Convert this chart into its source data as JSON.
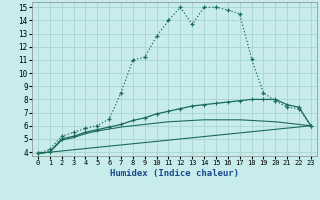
{
  "xlabel": "Humidex (Indice chaleur)",
  "bg_color": "#c8ecec",
  "grid_color": "#b0d8d8",
  "line_color": "#1a6b5a",
  "xlim": [
    -0.5,
    23.5
  ],
  "ylim": [
    3.7,
    15.4
  ],
  "xticks": [
    0,
    1,
    2,
    3,
    4,
    5,
    6,
    7,
    8,
    9,
    10,
    11,
    12,
    13,
    14,
    15,
    16,
    17,
    18,
    19,
    20,
    21,
    22,
    23
  ],
  "yticks": [
    4,
    5,
    6,
    7,
    8,
    9,
    10,
    11,
    12,
    13,
    14,
    15
  ],
  "series1_x": [
    0,
    1,
    2,
    3,
    4,
    5,
    6,
    7,
    8,
    9,
    10,
    11,
    12,
    13,
    14,
    15,
    16,
    17,
    18,
    19,
    20,
    21,
    22,
    23
  ],
  "series1_y": [
    3.9,
    4.2,
    5.2,
    5.5,
    5.8,
    6.0,
    6.5,
    8.5,
    11.0,
    11.2,
    12.8,
    14.0,
    15.0,
    13.7,
    15.0,
    15.0,
    14.8,
    14.5,
    11.1,
    8.5,
    7.9,
    7.4,
    7.3,
    6.0
  ],
  "series2_x": [
    0,
    1,
    2,
    3,
    4,
    5,
    6,
    7,
    8,
    9,
    10,
    11,
    12,
    13,
    14,
    15,
    16,
    17,
    18,
    19,
    20,
    21,
    22,
    23
  ],
  "series2_y": [
    3.9,
    4.0,
    5.0,
    5.2,
    5.5,
    5.7,
    5.9,
    6.1,
    6.4,
    6.6,
    6.9,
    7.1,
    7.3,
    7.5,
    7.6,
    7.7,
    7.8,
    7.9,
    8.0,
    8.0,
    8.0,
    7.6,
    7.4,
    6.0
  ],
  "series3_x": [
    0,
    1,
    2,
    3,
    4,
    5,
    6,
    7,
    8,
    9,
    10,
    11,
    12,
    13,
    14,
    15,
    16,
    17,
    18,
    19,
    20,
    21,
    22,
    23
  ],
  "series3_y": [
    3.9,
    4.0,
    4.9,
    5.1,
    5.4,
    5.6,
    5.75,
    5.9,
    6.0,
    6.1,
    6.2,
    6.3,
    6.35,
    6.4,
    6.45,
    6.45,
    6.45,
    6.45,
    6.4,
    6.35,
    6.3,
    6.2,
    6.1,
    6.0
  ],
  "series4_x": [
    0,
    23
  ],
  "series4_y": [
    3.9,
    6.0
  ]
}
